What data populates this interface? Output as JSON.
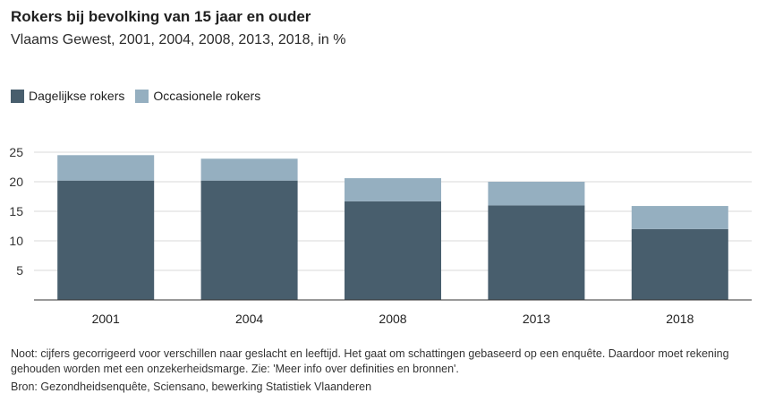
{
  "header": {
    "title": "Rokers bij bevolking van 15 jaar en ouder",
    "subtitle": "Vlaams Gewest, 2001, 2004, 2008, 2013, 2018, in %"
  },
  "legend": [
    {
      "label": "Dagelijkse rokers",
      "color": "#485e6d"
    },
    {
      "label": "Occasionele rokers",
      "color": "#95afc0"
    }
  ],
  "chart_data": {
    "type": "bar",
    "stacked": true,
    "categories": [
      "2001",
      "2004",
      "2008",
      "2013",
      "2018"
    ],
    "series": [
      {
        "name": "Dagelijkse rokers",
        "color": "#485e6d",
        "values": [
          20.2,
          20.2,
          16.7,
          16.0,
          12.0
        ]
      },
      {
        "name": "Occasionele rokers",
        "color": "#95afc0",
        "values": [
          4.3,
          3.7,
          3.9,
          4.0,
          3.9
        ]
      }
    ],
    "yticks": [
      "5",
      "10",
      "15",
      "20",
      "25"
    ],
    "ylim": [
      0,
      26
    ],
    "xlabel": "",
    "ylabel": "",
    "grid": true
  },
  "footer": {
    "note": "Noot: cijfers gecorrigeerd voor verschillen naar geslacht en leeftijd. Het gaat om schattingen gebaseerd op een enquête. Daardoor moet rekening gehouden worden met een onzekerheidsmarge. Zie: 'Meer info over definities en bronnen'.",
    "source": "Bron: Gezondheidsenquête, Sciensano, bewerking Statistiek Vlaanderen"
  }
}
